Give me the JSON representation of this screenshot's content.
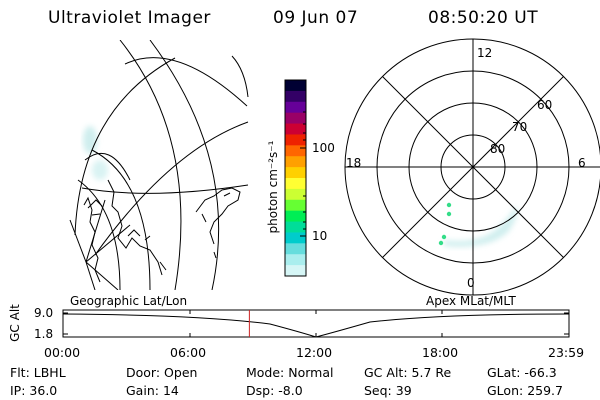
{
  "header": {
    "instrument": "Ultraviolet Imager",
    "date": "09 Jun 07",
    "time": "08:50:20 UT"
  },
  "colorbar": {
    "unit_label": "photon cm⁻²s⁻¹",
    "ticks": [
      {
        "value": 100,
        "label": "100"
      },
      {
        "value": 10,
        "label": "10"
      }
    ],
    "colors": [
      "#000033",
      "#330066",
      "#660099",
      "#990066",
      "#cc0033",
      "#ee2200",
      "#ff6600",
      "#ffa000",
      "#ffd000",
      "#ffff33",
      "#ccff33",
      "#66ff33",
      "#00ee55",
      "#00dd99",
      "#00cccc",
      "#66dddd",
      "#aaeeee",
      "#d6f6f6"
    ]
  },
  "polar_plot": {
    "mlt_labels": {
      "top": "12",
      "left": "18",
      "right": "6",
      "bottom": "0"
    },
    "lat_labels": [
      "60",
      "70",
      "80"
    ],
    "dot_color": "#33dd88",
    "aurora_color": "#cfeeee"
  },
  "projection_labels": {
    "left": "Geographic Lat/Lon",
    "right": "Apex MLat/MLT"
  },
  "altitude_plot": {
    "axis_label": "GC Alt",
    "ticks": [
      "9.0",
      "1.8"
    ],
    "x_ticks": [
      "00:00",
      "06:00",
      "12:00",
      "18:00",
      "23:59"
    ],
    "marker_color": "#cc2222",
    "marker_time_hours": 8.84
  },
  "info_rows": [
    [
      {
        "label": "Flt:",
        "value": "LBHL"
      },
      {
        "label": "Door:",
        "value": "Open"
      },
      {
        "label": "Mode:",
        "value": "Normal"
      },
      {
        "label": "GC Alt:",
        "value": "5.7 Re"
      },
      {
        "label": "GLat:",
        "value": "-66.3"
      }
    ],
    [
      {
        "label": "IP:",
        "value": "36.0"
      },
      {
        "label": "Gain:",
        "value": "14"
      },
      {
        "label": "Dsp:",
        "value": "-8.0"
      },
      {
        "label": "Seq:",
        "value": "39"
      },
      {
        "label": "GLon:",
        "value": "259.7"
      }
    ]
  ]
}
